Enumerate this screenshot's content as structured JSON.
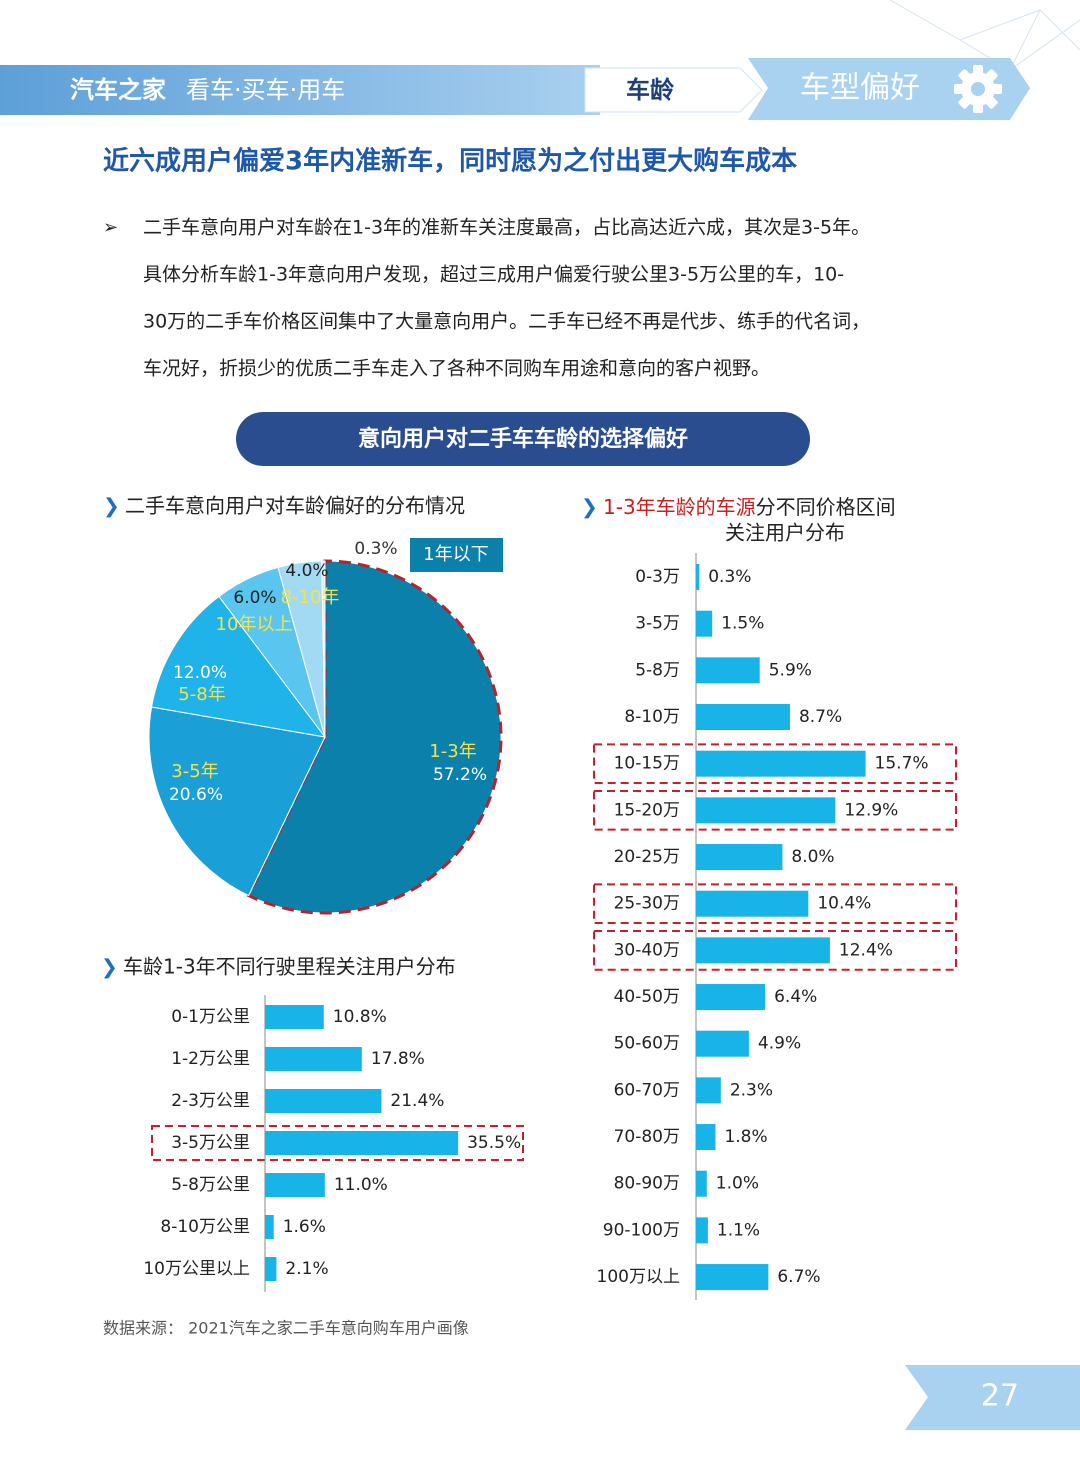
{
  "header": {
    "brand": "汽车之家",
    "tagline": "看车·买车·用车",
    "tab": "车龄",
    "section": "车型偏好"
  },
  "title": "近六成用户偏爱3年内准新车，同时愿为之付出更大购车成本",
  "bullet": "➢",
  "paragraph": [
    "二手车意向用户对车龄在1-3年的准新车关注度最高，占比高达近六成，其次是3-5年。",
    "具体分析车龄1-3年意向用户发现，超过三成用户偏爱行驶公里3-5万公里的车，10-",
    "30万的二手车价格区间集中了大量意向用户。二手车已经不再是代步、练手的代名词，",
    "车况好，折损少的优质二手车走入了各种不同购车用途和意向的客户视野。"
  ],
  "banner": "意向用户对二手车车龄的选择偏好",
  "chart_data": [
    {
      "type": "pie",
      "title": "二手车意向用户对车龄偏好的分布情况",
      "categories": [
        "1-3年",
        "3-5年",
        "5-8年",
        "10年以上",
        "8-10年",
        "1年以下"
      ],
      "values": [
        57.2,
        20.6,
        12.0,
        6.0,
        4.0,
        0.3
      ],
      "value_labels": [
        "57.2%",
        "20.6%",
        "12.0%",
        "6.0%",
        "4.0%",
        "0.3%"
      ],
      "colors": [
        "#0a80aa",
        "#1a9fd6",
        "#1fb3ea",
        "#5ac5ef",
        "#a3daf3",
        "#d3eefa"
      ],
      "highlight": [
        0
      ]
    },
    {
      "type": "hbar",
      "title": "车龄1-3年不同行驶里程关注用户分布",
      "categories": [
        "0-1万公里",
        "1-2万公里",
        "2-3万公里",
        "3-5万公里",
        "5-8万公里",
        "8-10万公里",
        "10万公里以上"
      ],
      "values": [
        10.8,
        17.8,
        21.4,
        35.5,
        11.0,
        1.6,
        2.1
      ],
      "value_labels": [
        "10.8%",
        "17.8%",
        "21.4%",
        "35.5%",
        "11.0%",
        "1.6%",
        "2.1%"
      ],
      "color": "#18b4e8",
      "xlim": [
        0,
        40
      ],
      "highlight": [
        3
      ]
    },
    {
      "type": "hbar",
      "title_red": "1-3年车龄的车源",
      "title": "分不同价格区间",
      "title_line2": "关注用户分布",
      "categories": [
        "0-3万",
        "3-5万",
        "5-8万",
        "8-10万",
        "10-15万",
        "15-20万",
        "20-25万",
        "25-30万",
        "30-40万",
        "40-50万",
        "50-60万",
        "60-70万",
        "70-80万",
        "80-90万",
        "90-100万",
        "100万以上"
      ],
      "values": [
        0.3,
        1.5,
        5.9,
        8.7,
        15.7,
        12.9,
        8.0,
        10.4,
        12.4,
        6.4,
        4.9,
        2.3,
        1.8,
        1.0,
        1.1,
        6.7
      ],
      "value_labels": [
        "0.3%",
        "1.5%",
        "5.9%",
        "8.7%",
        "15.7%",
        "12.9%",
        "8.0%",
        "10.4%",
        "12.4%",
        "6.4%",
        "4.9%",
        "2.3%",
        "1.8%",
        "1.0%",
        "1.1%",
        "6.7%"
      ],
      "color": "#18b4e8",
      "xlim": [
        0,
        20
      ],
      "highlight": [
        4,
        5,
        7,
        8
      ]
    }
  ],
  "source": "数据来源： 2021汽车之家二手车意向购车用户画像",
  "page_number": 27
}
